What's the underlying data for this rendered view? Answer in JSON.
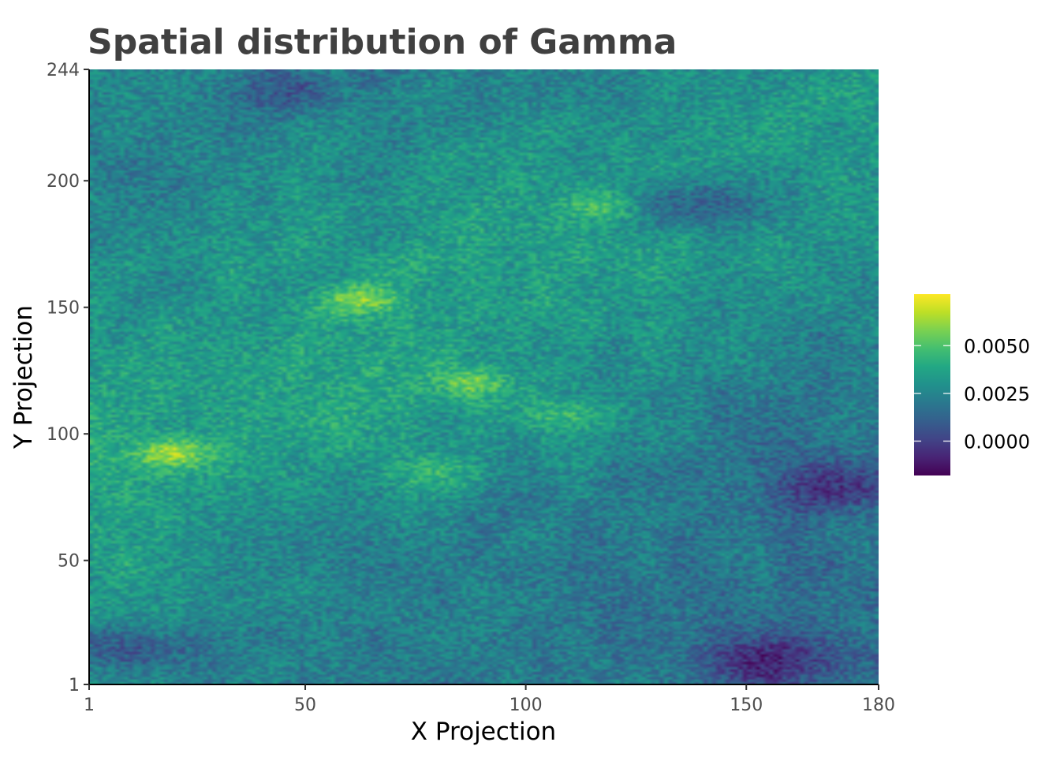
{
  "chart_data": {
    "type": "heatmap",
    "title": "Spatial distribution of Gamma",
    "xlabel": "X Projection",
    "ylabel": "Y Projection",
    "xlim": [
      1,
      180
    ],
    "ylim": [
      1,
      244
    ],
    "x_ticks": [
      1,
      50,
      100,
      150,
      180
    ],
    "y_ticks": [
      1,
      50,
      100,
      150,
      200,
      244
    ],
    "x_tick_labels": [
      "1",
      "50",
      "100",
      "150",
      "180"
    ],
    "y_tick_labels": [
      "1",
      "50",
      "100",
      "150",
      "200",
      "244"
    ],
    "grid": false,
    "colorscale": "viridis",
    "colorbar": {
      "range": [
        -0.0018,
        0.0077
      ],
      "ticks": [
        0.0,
        0.0025,
        0.005
      ],
      "tick_labels": [
        "0.0000",
        "0.0025",
        "0.0050"
      ],
      "placement": "right"
    },
    "value_pattern": {
      "description_of_values": "noisy field; higher values (0.004–0.006) concentrated in the upper-left/center diagonal band, lower values (~0.0 to -0.001) toward the lower-right and bottom-left corners",
      "high_spots": [
        {
          "x": 20,
          "y": 92,
          "value": 0.0065
        },
        {
          "x": 63,
          "y": 153,
          "value": 0.0062
        },
        {
          "x": 88,
          "y": 120,
          "value": 0.0058
        },
        {
          "x": 118,
          "y": 190,
          "value": 0.0055
        },
        {
          "x": 78,
          "y": 85,
          "value": 0.0052
        },
        {
          "x": 110,
          "y": 107,
          "value": 0.005
        }
      ],
      "low_spots": [
        {
          "x": 138,
          "y": 190,
          "value": -0.0008
        },
        {
          "x": 155,
          "y": 10,
          "value": -0.001
        },
        {
          "x": 10,
          "y": 15,
          "value": -0.0008
        },
        {
          "x": 170,
          "y": 80,
          "value": -0.0005
        },
        {
          "x": 45,
          "y": 235,
          "value": 0.0
        }
      ]
    }
  },
  "colors": {
    "viridis_low": "#440154",
    "viridis_mid": "#21918c",
    "viridis_high": "#fde725"
  }
}
